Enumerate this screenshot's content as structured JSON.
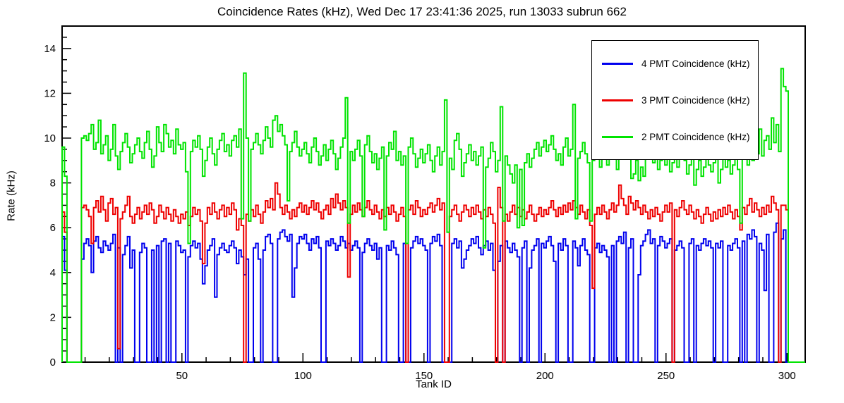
{
  "title": "Coincidence Rates (kHz), Wed Dec 17 23:41:36 2025, run 13033 subrun 662",
  "chart_data": {
    "type": "line",
    "style": "step-histogram",
    "title": "Coincidence Rates (kHz), Wed Dec 17 23:41:36 2025, run 13033 subrun 662",
    "xlabel": "Tank ID",
    "ylabel": "Rate (kHz)",
    "xlim": [
      0.5,
      307.5
    ],
    "ylim": [
      0,
      15
    ],
    "x_major_ticks": [
      50,
      100,
      150,
      200,
      250,
      300
    ],
    "x_minor_step": 10,
    "y_major_ticks": [
      0,
      2,
      4,
      6,
      8,
      10,
      12,
      14
    ],
    "y_minor_step": 0.5,
    "grid": false,
    "background": "#ffffff",
    "axis_color": "#000000",
    "legend_position": "top-right",
    "x_start_tank_id": 1,
    "series": [
      {
        "name": "4 PMT Coincidence (kHz)",
        "color": "#0000ee",
        "values": [
          5.6,
          4.1,
          0,
          0,
          0,
          0,
          0,
          0,
          4.6,
          5.3,
          5.5,
          5.2,
          4.0,
          5.4,
          5.6,
          5.1,
          4.9,
          5.4,
          5.2,
          5.0,
          5.3,
          5.7,
          0,
          5.1,
          0,
          4.8,
          5.2,
          5.6,
          4.2,
          5.0,
          0,
          0,
          4.9,
          5.3,
          5.1,
          0,
          0,
          5.0,
          0,
          5.2,
          0,
          5.4,
          5.5,
          0,
          5.3,
          0,
          0,
          5.4,
          5.2,
          4.9,
          5.0,
          0,
          4.7,
          5.2,
          5.4,
          5.1,
          5.3,
          4.6,
          3.5,
          4.3,
          5.0,
          5.2,
          5.5,
          2.9,
          4.8,
          5.1,
          5.3,
          5.0,
          4.9,
          5.2,
          5.4,
          5.1,
          4.4,
          5.0,
          4.7,
          3.9,
          4.6,
          0,
          0,
          5.1,
          5.3,
          4.6,
          0,
          5.0,
          5.6,
          5.7,
          5.3,
          0,
          0,
          5.5,
          5.8,
          5.9,
          5.6,
          5.4,
          5.7,
          2.9,
          4.2,
          5.3,
          5.6,
          5.5,
          5.7,
          5.3,
          5.0,
          5.5,
          5.3,
          5.6,
          5.1,
          0,
          0,
          5.4,
          5.2,
          5.5,
          5.3,
          5.0,
          5.2,
          5.6,
          5.4,
          5.1,
          5.3,
          5.0,
          5.2,
          5.4,
          5.1,
          0,
          4.9,
          5.3,
          5.5,
          5.2,
          5.0,
          5.3,
          4.6,
          5.1,
          0,
          0,
          5.2,
          5.0,
          5.4,
          5.1,
          4.8,
          0,
          0,
          5.3,
          0,
          0,
          5.1,
          5.4,
          5.6,
          5.3,
          5.5,
          5.2,
          5.0,
          0,
          5.3,
          5.6,
          5.4,
          5.7,
          5.2,
          0,
          0,
          0,
          0,
          5.3,
          5.5,
          5.1,
          5.4,
          4.2,
          4.6,
          5.0,
          5.2,
          5.5,
          5.3,
          5.6,
          5.1,
          4.8,
          5.2,
          5.4,
          5.0,
          5.3,
          4.1,
          0,
          4.5,
          5.2,
          0,
          5.4,
          5.1,
          4.9,
          5.3,
          5.0,
          4.7,
          0,
          5.1,
          5.4,
          0,
          4.2,
          5.0,
          5.2,
          5.5,
          0,
          5.3,
          5.1,
          5.4,
          5.6,
          5.2,
          4.5,
          0,
          5.3,
          5.0,
          5.5,
          5.2,
          0,
          0,
          5.4,
          5.1,
          4.3,
          5.2,
          5.5,
          5.0,
          4.8,
          0,
          0,
          5.1,
          5.3,
          4.9,
          5.2,
          5.0,
          4.7,
          0,
          5.2,
          0,
          5.4,
          5.6,
          5.3,
          5.8,
          0,
          5.1,
          5.5,
          0,
          0,
          3.9,
          5.2,
          5.4,
          5.7,
          5.9,
          5.3,
          5.5,
          0,
          5.2,
          5.6,
          5.4,
          5.1,
          5.3,
          5.5,
          0,
          5.0,
          5.2,
          5.4,
          5.1,
          0,
          0,
          5.3,
          5.5,
          0,
          5.2,
          5.0,
          5.3,
          5.5,
          5.2,
          5.4,
          5.1,
          0,
          5.3,
          5.1,
          5.4,
          0,
          0,
          5.2,
          5.0,
          5.3,
          5.5,
          5.1,
          0,
          5.4,
          0,
          5.7,
          5.5,
          5.9,
          5.6,
          0,
          5.3,
          5.0,
          3.2,
          5.7,
          0,
          0,
          5.8,
          6.2,
          0,
          5.5,
          5.9,
          0,
          0,
          0,
          0,
          0,
          0,
          0
        ]
      },
      {
        "name": "3 PMT Coincidence (kHz)",
        "color": "#ee0000",
        "values": [
          6.7,
          5.8,
          0,
          0,
          0,
          0,
          0,
          0,
          6.9,
          7.0,
          6.8,
          6.5,
          5.3,
          6.9,
          7.2,
          6.7,
          7.4,
          6.8,
          6.3,
          7.1,
          7.3,
          6.6,
          6.9,
          0.6,
          6.4,
          6.7,
          7.0,
          7.4,
          6.5,
          6.2,
          6.6,
          6.9,
          6.4,
          6.7,
          7.0,
          6.6,
          7.1,
          6.8,
          6.2,
          6.5,
          7.0,
          6.7,
          6.4,
          6.9,
          6.6,
          6.3,
          6.8,
          6.5,
          6.2,
          6.6,
          6.4,
          6.7,
          6.1,
          6.5,
          6.9,
          6.6,
          6.8,
          6.3,
          4.4,
          6.2,
          6.9,
          6.6,
          7.1,
          6.7,
          6.4,
          6.8,
          7.0,
          6.5,
          6.9,
          6.6,
          7.1,
          6.8,
          5.9,
          6.4,
          6.1,
          0,
          6.6,
          6.3,
          6.8,
          6.5,
          7.0,
          6.6,
          6.2,
          6.7,
          7.2,
          6.9,
          7.3,
          6.8,
          8.0,
          7.5,
          6.9,
          6.6,
          7.0,
          6.7,
          6.4,
          6.8,
          6.5,
          6.9,
          7.1,
          6.7,
          7.0,
          6.6,
          6.9,
          7.2,
          6.8,
          7.1,
          6.7,
          6.4,
          6.8,
          7.0,
          6.6,
          7.3,
          6.9,
          7.5,
          7.1,
          6.8,
          7.2,
          6.9,
          3.8,
          6.6,
          7.0,
          6.7,
          7.1,
          6.8,
          6.5,
          6.9,
          7.2,
          6.8,
          6.6,
          7.0,
          6.7,
          6.4,
          6.8,
          6.5,
          6.9,
          6.6,
          7.0,
          6.7,
          6.3,
          6.6,
          6.9,
          6.5,
          0,
          6.8,
          7.0,
          6.6,
          7.2,
          6.9,
          6.5,
          6.8,
          6.6,
          6.9,
          7.1,
          6.7,
          7.0,
          7.3,
          6.8,
          7.1,
          0,
          0,
          6.5,
          6.8,
          7.0,
          6.6,
          6.3,
          6.7,
          7.0,
          6.8,
          6.5,
          6.9,
          6.6,
          7.0,
          6.7,
          6.4,
          6.8,
          6.5,
          6.9,
          6.6,
          6.2,
          0,
          7.8,
          6.9,
          0,
          6.6,
          6.3,
          6.7,
          7.0,
          6.6,
          6.9,
          6.5,
          6.8,
          6.4,
          6.7,
          7.0,
          6.6,
          6.3,
          6.6,
          6.9,
          6.5,
          6.8,
          6.6,
          6.9,
          7.2,
          6.8,
          6.5,
          6.9,
          6.6,
          7.0,
          6.7,
          7.1,
          6.8,
          7.2,
          6.9,
          6.6,
          7.0,
          6.7,
          6.4,
          6.8,
          6.1,
          3.3,
          6.6,
          6.9,
          6.6,
          7.0,
          6.7,
          6.4,
          6.8,
          7.1,
          6.7,
          7.0,
          7.9,
          7.3,
          7.0,
          6.6,
          7.4,
          7.1,
          6.8,
          7.2,
          6.9,
          6.6,
          7.0,
          6.7,
          6.4,
          6.8,
          6.5,
          6.9,
          6.6,
          6.3,
          6.7,
          7.0,
          6.7,
          7.1,
          0,
          6.8,
          6.5,
          6.9,
          7.2,
          6.8,
          6.6,
          7.0,
          6.7,
          6.4,
          6.8,
          6.5,
          6.2,
          6.6,
          6.9,
          6.6,
          6.3,
          6.7,
          6.4,
          6.8,
          6.5,
          6.9,
          6.6,
          7.0,
          6.7,
          6.4,
          6.8,
          6.5,
          5.9,
          6.9,
          6.6,
          7.0,
          7.3,
          6.7,
          7.1,
          6.8,
          6.5,
          6.9,
          6.6,
          7.0,
          6.7,
          7.4,
          7.1,
          6.8,
          0,
          7.0,
          7.0,
          6.8,
          0,
          0,
          0,
          0,
          0,
          0
        ]
      },
      {
        "name": "2 PMT Coincidence (kHz)",
        "color": "#00e400",
        "values": [
          9.6,
          8.3,
          0,
          0,
          0,
          0,
          0,
          0,
          10.0,
          10.1,
          9.9,
          10.2,
          10.6,
          9.5,
          9.8,
          10.8,
          9.3,
          9.7,
          10.1,
          9.0,
          9.5,
          10.6,
          9.2,
          8.6,
          9.4,
          9.8,
          10.2,
          9.6,
          8.9,
          9.3,
          9.7,
          10.0,
          9.4,
          9.1,
          9.8,
          10.3,
          9.5,
          8.7,
          9.2,
          10.5,
          9.8,
          9.4,
          10.6,
          10.2,
          9.6,
          9.9,
          9.3,
          10.4,
          9.7,
          9.5,
          9.8,
          8.5,
          5.3,
          9.4,
          9.9,
          9.6,
          10.1,
          9.5,
          8.3,
          9.0,
          9.6,
          10.0,
          9.3,
          8.8,
          9.5,
          9.9,
          10.2,
          9.4,
          9.7,
          9.2,
          9.9,
          10.1,
          9.6,
          10.4,
          6.4,
          12.9,
          10.0,
          6.3,
          9.5,
          9.8,
          10.2,
          9.7,
          9.3,
          9.9,
          10.5,
          10.0,
          9.6,
          10.8,
          11.0,
          10.3,
          10.6,
          10.1,
          9.7,
          7.2,
          9.4,
          9.8,
          10.3,
          9.6,
          9.2,
          9.5,
          9.8,
          9.3,
          8.9,
          9.6,
          10.0,
          9.4,
          8.8,
          9.2,
          9.7,
          9.0,
          9.5,
          9.9,
          9.3,
          8.6,
          9.1,
          9.6,
          10.0,
          11.8,
          6.2,
          9.4,
          9.0,
          9.5,
          9.9,
          9.2,
          6.5,
          9.7,
          10.1,
          9.4,
          8.9,
          9.3,
          8.6,
          9.1,
          9.6,
          5.9,
          9.2,
          9.8,
          9.5,
          10.3,
          9.0,
          9.4,
          8.8,
          9.2,
          5.3,
          9.6,
          10.0,
          9.3,
          8.7,
          9.1,
          9.5,
          8.9,
          9.3,
          9.7,
          9.0,
          8.5,
          9.2,
          9.6,
          8.8,
          9.4,
          11.7,
          5.8,
          9.1,
          8.6,
          9.9,
          10.2,
          9.5,
          8.3,
          8.9,
          9.3,
          9.7,
          9.0,
          9.4,
          8.8,
          9.2,
          9.6,
          5.1,
          8.7,
          9.1,
          9.8,
          9.4,
          8.5,
          9.0,
          11.4,
          6.3,
          9.2,
          8.8,
          8.4,
          8.0,
          8.8,
          6.0,
          8.6,
          6.1,
          8.9,
          9.3,
          8.7,
          9.1,
          9.5,
          9.8,
          9.2,
          9.6,
          9.9,
          9.4,
          9.7,
          10.1,
          9.5,
          9.0,
          9.3,
          8.8,
          9.6,
          10.0,
          9.2,
          9.5,
          11.5,
          6.4,
          9.1,
          9.4,
          9.8,
          9.3,
          8.9,
          6.3,
          9.0,
          9.6,
          9.2,
          8.7,
          9.4,
          9.1,
          8.8,
          9.5,
          9.9,
          9.3,
          8.6,
          9.8,
          10.2,
          9.5,
          9.1,
          9.6,
          8.2,
          8.4,
          9.0,
          8.1,
          8.7,
          8.3,
          9.2,
          9.7,
          9.4,
          8.9,
          9.3,
          8.6,
          9.0,
          9.5,
          8.8,
          9.2,
          8.5,
          8.9,
          9.3,
          8.7,
          9.1,
          9.6,
          9.0,
          8.4,
          8.8,
          9.4,
          7.9,
          8.6,
          9.0,
          8.3,
          8.7,
          9.2,
          8.8,
          8.5,
          8.9,
          9.3,
          8.0,
          8.6,
          9.1,
          8.7,
          9.0,
          8.4,
          8.8,
          9.2,
          8.6,
          6.2,
          9.1,
          9.4,
          8.8,
          9.5,
          9.0,
          9.8,
          9.3,
          10.4,
          9.2,
          9.9,
          10.1,
          9.5,
          10.9,
          9.8,
          10.6,
          9.4,
          13.1,
          12.3,
          12.1,
          0,
          0,
          0,
          0,
          0,
          0
        ]
      }
    ]
  }
}
